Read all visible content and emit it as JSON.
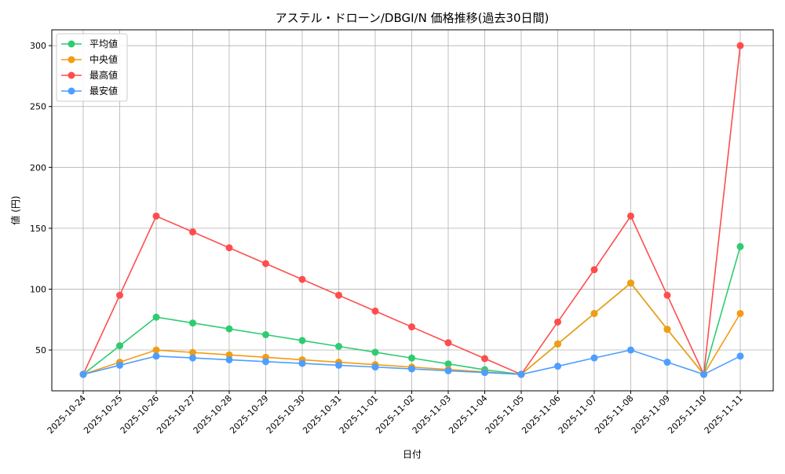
{
  "chart_data": {
    "type": "line",
    "title": "アステル・ドローン/DBGI/N 価格推移(過去30日間)",
    "xlabel": "日付",
    "ylabel": "値 (円)",
    "ylim": [
      16.5,
      313
    ],
    "yticks": [
      50,
      100,
      150,
      200,
      250,
      300
    ],
    "grid": true,
    "legend_position": "top-left",
    "x": [
      "2025-10-24",
      "2025-10-25",
      "2025-10-26",
      "2025-10-27",
      "2025-10-28",
      "2025-10-29",
      "2025-10-30",
      "2025-10-31",
      "2025-11-01",
      "2025-11-02",
      "2025-11-03",
      "2025-11-04",
      "2025-11-05",
      "2025-11-06",
      "2025-11-07",
      "2025-11-08",
      "2025-11-09",
      "2025-11-10",
      "2025-11-11"
    ],
    "series": [
      {
        "name": "平均値",
        "color": "#2ecc71",
        "values": [
          30,
          53.5,
          77,
          72.2,
          67.4,
          62.6,
          57.8,
          53,
          48.2,
          43.4,
          38.6,
          33.8,
          30,
          55,
          80,
          105,
          67,
          30,
          135
        ]
      },
      {
        "name": "中央値",
        "color": "#f39c12",
        "values": [
          30,
          40,
          50,
          48,
          46,
          44,
          42,
          40,
          38,
          36,
          34,
          32,
          30,
          55,
          80,
          105,
          67,
          30,
          80
        ]
      },
      {
        "name": "最高値",
        "color": "#ff4d4d",
        "values": [
          30,
          95,
          160,
          147,
          134,
          121,
          108,
          95,
          82,
          69,
          56,
          43,
          30,
          73,
          116,
          160,
          95,
          30,
          300
        ]
      },
      {
        "name": "最安値",
        "color": "#4d9eff",
        "values": [
          30,
          37.5,
          45,
          43.5,
          42,
          40.5,
          39,
          37.5,
          36,
          34.5,
          33,
          31.5,
          30,
          36.7,
          43.5,
          50,
          40,
          30,
          45
        ]
      }
    ]
  }
}
